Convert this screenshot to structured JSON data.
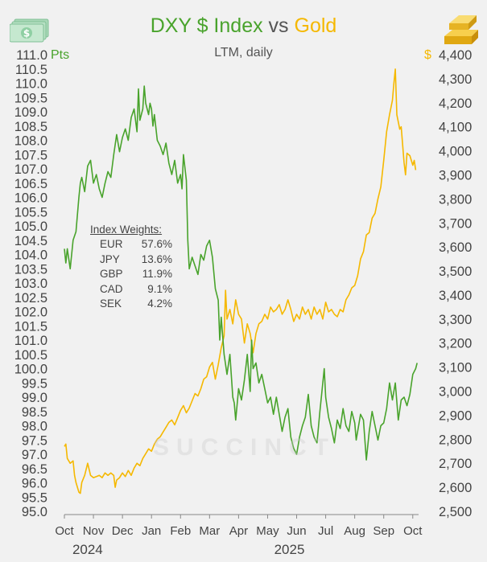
{
  "colors": {
    "dxy": "#49a32c",
    "gold": "#f5b800",
    "text": "#555555",
    "axis": "#444444"
  },
  "icons": {
    "left": "dollar-bill-stack-icon",
    "right": "gold-bars-icon"
  },
  "chart_data": {
    "type": "line",
    "title_parts": {
      "dxy": "DXY $ Index",
      "vs": "vs",
      "gold": "Gold"
    },
    "subtitle": "LTM, daily",
    "watermark": "SUCCINCT",
    "left_unit": "Pts",
    "right_unit": "$",
    "left_axis": {
      "ylim": [
        95.0,
        111.0
      ],
      "ticks": [
        "111.0",
        "110.5",
        "110.0",
        "109.5",
        "109.0",
        "108.5",
        "108.0",
        "107.5",
        "107.0",
        "106.5",
        "106.0",
        "105.5",
        "105.0",
        "104.5",
        "104.0",
        "103.5",
        "103.0",
        "102.5",
        "102.0",
        "101.5",
        "101.0",
        "100.5",
        "100.0",
        "99.5",
        "99.0",
        "98.5",
        "98.0",
        "97.5",
        "97.0",
        "96.5",
        "96.0",
        "95.5",
        "95.0"
      ]
    },
    "right_axis": {
      "ylim": [
        2500,
        4400
      ],
      "ticks": [
        "4,400",
        "4,300",
        "4,200",
        "4,100",
        "4,000",
        "3,900",
        "3,800",
        "3,700",
        "3,600",
        "3,500",
        "3,400",
        "3,300",
        "3,200",
        "3,100",
        "3,000",
        "2,900",
        "2,800",
        "2,700",
        "2,600",
        "2,500"
      ]
    },
    "x_axis": {
      "range": [
        0,
        12.2
      ],
      "months": [
        "Oct",
        "Nov",
        "Dec",
        "Jan",
        "Feb",
        "Mar",
        "Apr",
        "May",
        "Jun",
        "Jul",
        "Aug",
        "Sep",
        "Oct"
      ],
      "years": [
        "2024",
        "2025"
      ]
    },
    "index_weights": {
      "title": "Index Weights:",
      "items": [
        {
          "currency": "EUR",
          "weight": "57.6%"
        },
        {
          "currency": "JPY",
          "weight": "13.6%"
        },
        {
          "currency": "GBP",
          "weight": "11.9%"
        },
        {
          "currency": "CAD",
          "weight": "9.1%"
        },
        {
          "currency": "SEK",
          "weight": "4.2%"
        }
      ]
    },
    "series": [
      {
        "name": "DXY $ Index",
        "axis": "left",
        "points": [
          [
            0.0,
            104.2
          ],
          [
            0.05,
            103.7
          ],
          [
            0.1,
            104.2
          ],
          [
            0.2,
            103.5
          ],
          [
            0.3,
            104.5
          ],
          [
            0.4,
            104.8
          ],
          [
            0.5,
            106.0
          ],
          [
            0.55,
            106.5
          ],
          [
            0.6,
            106.7
          ],
          [
            0.7,
            106.2
          ],
          [
            0.8,
            107.1
          ],
          [
            0.9,
            107.3
          ],
          [
            1.0,
            106.5
          ],
          [
            1.1,
            106.8
          ],
          [
            1.2,
            106.3
          ],
          [
            1.3,
            106.0
          ],
          [
            1.4,
            106.5
          ],
          [
            1.5,
            106.9
          ],
          [
            1.6,
            106.7
          ],
          [
            1.7,
            107.5
          ],
          [
            1.8,
            108.2
          ],
          [
            1.9,
            107.6
          ],
          [
            2.0,
            108.1
          ],
          [
            2.1,
            108.4
          ],
          [
            2.2,
            108.0
          ],
          [
            2.3,
            108.8
          ],
          [
            2.4,
            109.1
          ],
          [
            2.5,
            108.3
          ],
          [
            2.55,
            109.8
          ],
          [
            2.6,
            108.7
          ],
          [
            2.7,
            109.1
          ],
          [
            2.75,
            109.9
          ],
          [
            2.8,
            109.3
          ],
          [
            2.9,
            108.9
          ],
          [
            2.95,
            109.3
          ],
          [
            3.0,
            109.1
          ],
          [
            3.05,
            108.5
          ],
          [
            3.1,
            108.9
          ],
          [
            3.2,
            108.0
          ],
          [
            3.3,
            107.8
          ],
          [
            3.4,
            107.5
          ],
          [
            3.5,
            107.9
          ],
          [
            3.6,
            107.2
          ],
          [
            3.7,
            106.8
          ],
          [
            3.8,
            107.3
          ],
          [
            3.9,
            106.5
          ],
          [
            4.0,
            106.8
          ],
          [
            4.05,
            106.3
          ],
          [
            4.1,
            107.5
          ],
          [
            4.2,
            106.6
          ],
          [
            4.25,
            104.5
          ],
          [
            4.3,
            103.5
          ],
          [
            4.4,
            103.9
          ],
          [
            4.5,
            103.6
          ],
          [
            4.6,
            103.3
          ],
          [
            4.7,
            104.0
          ],
          [
            4.8,
            103.8
          ],
          [
            4.9,
            104.3
          ],
          [
            5.0,
            104.5
          ],
          [
            5.1,
            103.9
          ],
          [
            5.2,
            102.8
          ],
          [
            5.3,
            102.4
          ],
          [
            5.35,
            101.0
          ],
          [
            5.4,
            101.8
          ],
          [
            5.5,
            100.5
          ],
          [
            5.6,
            99.8
          ],
          [
            5.7,
            100.5
          ],
          [
            5.8,
            99.0
          ],
          [
            5.85,
            98.8
          ],
          [
            5.9,
            98.2
          ],
          [
            6.0,
            99.3
          ],
          [
            6.1,
            98.9
          ],
          [
            6.2,
            99.6
          ],
          [
            6.3,
            100.5
          ],
          [
            6.4,
            99.2
          ],
          [
            6.45,
            101.0
          ],
          [
            6.5,
            100.0
          ],
          [
            6.6,
            100.2
          ],
          [
            6.7,
            99.5
          ],
          [
            6.8,
            99.8
          ],
          [
            6.9,
            99.3
          ],
          [
            7.0,
            98.8
          ],
          [
            7.1,
            99.0
          ],
          [
            7.2,
            98.4
          ],
          [
            7.3,
            99.0
          ],
          [
            7.4,
            98.4
          ],
          [
            7.5,
            97.8
          ],
          [
            7.6,
            98.3
          ],
          [
            7.7,
            98.6
          ],
          [
            7.8,
            97.6
          ],
          [
            7.9,
            97.2
          ],
          [
            8.0,
            97.0
          ],
          [
            8.1,
            97.6
          ],
          [
            8.2,
            98.0
          ],
          [
            8.3,
            98.3
          ],
          [
            8.4,
            99.1
          ],
          [
            8.5,
            98.0
          ],
          [
            8.6,
            97.6
          ],
          [
            8.7,
            97.4
          ],
          [
            8.8,
            98.5
          ],
          [
            8.9,
            99.5
          ],
          [
            8.95,
            100.0
          ],
          [
            9.0,
            99.0
          ],
          [
            9.1,
            98.3
          ],
          [
            9.2,
            97.9
          ],
          [
            9.3,
            97.4
          ],
          [
            9.4,
            98.2
          ],
          [
            9.5,
            97.9
          ],
          [
            9.6,
            98.6
          ],
          [
            9.7,
            98.0
          ],
          [
            9.8,
            97.8
          ],
          [
            9.9,
            98.5
          ],
          [
            10.0,
            98.1
          ],
          [
            10.05,
            97.5
          ],
          [
            10.1,
            97.8
          ],
          [
            10.2,
            98.4
          ],
          [
            10.3,
            98.2
          ],
          [
            10.4,
            96.8
          ],
          [
            10.5,
            97.8
          ],
          [
            10.6,
            98.5
          ],
          [
            10.7,
            98.0
          ],
          [
            10.8,
            97.5
          ],
          [
            10.9,
            98.0
          ],
          [
            11.0,
            98.1
          ],
          [
            11.1,
            98.6
          ],
          [
            11.2,
            99.5
          ],
          [
            11.3,
            98.9
          ],
          [
            11.4,
            99.5
          ],
          [
            11.5,
            98.2
          ],
          [
            11.6,
            98.9
          ],
          [
            11.7,
            99.0
          ],
          [
            11.8,
            98.7
          ],
          [
            11.9,
            99.1
          ],
          [
            12.0,
            99.8
          ],
          [
            12.1,
            100.0
          ],
          [
            12.15,
            100.2
          ]
        ]
      },
      {
        "name": "Gold",
        "axis": "right",
        "points": [
          [
            0.0,
            2770
          ],
          [
            0.05,
            2780
          ],
          [
            0.1,
            2720
          ],
          [
            0.2,
            2700
          ],
          [
            0.3,
            2710
          ],
          [
            0.35,
            2650
          ],
          [
            0.4,
            2620
          ],
          [
            0.45,
            2600
          ],
          [
            0.5,
            2580
          ],
          [
            0.55,
            2575
          ],
          [
            0.6,
            2620
          ],
          [
            0.7,
            2650
          ],
          [
            0.8,
            2700
          ],
          [
            0.9,
            2650
          ],
          [
            1.0,
            2640
          ],
          [
            1.1,
            2645
          ],
          [
            1.2,
            2650
          ],
          [
            1.3,
            2640
          ],
          [
            1.4,
            2660
          ],
          [
            1.5,
            2650
          ],
          [
            1.6,
            2660
          ],
          [
            1.7,
            2650
          ],
          [
            1.75,
            2600
          ],
          [
            1.8,
            2630
          ],
          [
            1.9,
            2640
          ],
          [
            2.0,
            2660
          ],
          [
            2.1,
            2645
          ],
          [
            2.2,
            2670
          ],
          [
            2.3,
            2650
          ],
          [
            2.4,
            2680
          ],
          [
            2.5,
            2700
          ],
          [
            2.6,
            2690
          ],
          [
            2.7,
            2720
          ],
          [
            2.8,
            2740
          ],
          [
            2.9,
            2760
          ],
          [
            3.0,
            2750
          ],
          [
            3.1,
            2780
          ],
          [
            3.2,
            2800
          ],
          [
            3.3,
            2810
          ],
          [
            3.4,
            2830
          ],
          [
            3.5,
            2850
          ],
          [
            3.6,
            2870
          ],
          [
            3.7,
            2880
          ],
          [
            3.8,
            2860
          ],
          [
            3.9,
            2890
          ],
          [
            4.0,
            2920
          ],
          [
            4.1,
            2940
          ],
          [
            4.2,
            2910
          ],
          [
            4.3,
            2930
          ],
          [
            4.4,
            2960
          ],
          [
            4.5,
            2990
          ],
          [
            4.6,
            2980
          ],
          [
            4.7,
            3010
          ],
          [
            4.8,
            3050
          ],
          [
            4.9,
            3060
          ],
          [
            5.0,
            3100
          ],
          [
            5.1,
            3120
          ],
          [
            5.2,
            3050
          ],
          [
            5.3,
            3110
          ],
          [
            5.4,
            3180
          ],
          [
            5.5,
            3230
          ],
          [
            5.55,
            3420
          ],
          [
            5.6,
            3300
          ],
          [
            5.7,
            3340
          ],
          [
            5.8,
            3280
          ],
          [
            5.9,
            3380
          ],
          [
            6.0,
            3320
          ],
          [
            6.1,
            3300
          ],
          [
            6.2,
            3200
          ],
          [
            6.3,
            3280
          ],
          [
            6.4,
            3240
          ],
          [
            6.5,
            3160
          ],
          [
            6.6,
            3240
          ],
          [
            6.7,
            3280
          ],
          [
            6.8,
            3290
          ],
          [
            6.9,
            3320
          ],
          [
            7.0,
            3300
          ],
          [
            7.1,
            3350
          ],
          [
            7.2,
            3330
          ],
          [
            7.3,
            3340
          ],
          [
            7.4,
            3360
          ],
          [
            7.5,
            3320
          ],
          [
            7.6,
            3340
          ],
          [
            7.7,
            3380
          ],
          [
            7.8,
            3340
          ],
          [
            7.9,
            3290
          ],
          [
            8.0,
            3320
          ],
          [
            8.1,
            3300
          ],
          [
            8.2,
            3350
          ],
          [
            8.3,
            3320
          ],
          [
            8.4,
            3340
          ],
          [
            8.5,
            3300
          ],
          [
            8.6,
            3350
          ],
          [
            8.7,
            3320
          ],
          [
            8.8,
            3340
          ],
          [
            8.9,
            3300
          ],
          [
            9.0,
            3370
          ],
          [
            9.1,
            3330
          ],
          [
            9.2,
            3340
          ],
          [
            9.3,
            3320
          ],
          [
            9.4,
            3310
          ],
          [
            9.5,
            3340
          ],
          [
            9.6,
            3330
          ],
          [
            9.7,
            3380
          ],
          [
            9.8,
            3400
          ],
          [
            9.9,
            3430
          ],
          [
            10.0,
            3440
          ],
          [
            10.1,
            3480
          ],
          [
            10.2,
            3550
          ],
          [
            10.3,
            3580
          ],
          [
            10.4,
            3650
          ],
          [
            10.5,
            3660
          ],
          [
            10.6,
            3720
          ],
          [
            10.7,
            3740
          ],
          [
            10.8,
            3800
          ],
          [
            10.9,
            3850
          ],
          [
            11.0,
            3960
          ],
          [
            11.1,
            4080
          ],
          [
            11.2,
            4150
          ],
          [
            11.3,
            4210
          ],
          [
            11.35,
            4280
          ],
          [
            11.4,
            4340
          ],
          [
            11.45,
            4150
          ],
          [
            11.5,
            4120
          ],
          [
            11.55,
            4090
          ],
          [
            11.6,
            4100
          ],
          [
            11.7,
            3950
          ],
          [
            11.75,
            3900
          ],
          [
            11.8,
            3990
          ],
          [
            11.9,
            3980
          ],
          [
            12.0,
            3940
          ],
          [
            12.05,
            3960
          ],
          [
            12.1,
            3920
          ]
        ]
      }
    ]
  }
}
